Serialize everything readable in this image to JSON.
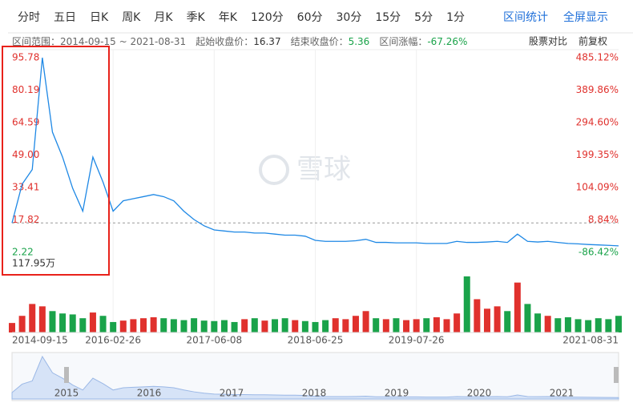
{
  "toolbar": {
    "tabs": [
      "分时",
      "五日",
      "日K",
      "周K",
      "月K",
      "季K",
      "年K",
      "120分",
      "60分",
      "30分",
      "15分",
      "5分",
      "1分"
    ],
    "actions": [
      "区间统计",
      "全屏显示"
    ]
  },
  "range_info": {
    "range_label": "区间范围：",
    "range_start": "2014-09-15",
    "range_sep": " ~ ",
    "range_end": "2021-08-31",
    "start_label": "起始收盘价：",
    "start_close": 16.37,
    "end_label": "结束收盘价：",
    "end_close": 5.36,
    "change_label": "区间涨幅：",
    "change": "-67.26%",
    "compare": "股票对比",
    "adjust": "前复权"
  },
  "watermark": "雪球",
  "chart_data": {
    "type": "line",
    "categories": [
      "2014-09-15",
      null,
      null,
      null,
      null,
      null,
      null,
      null,
      null,
      null,
      "2016-02-26",
      null,
      null,
      null,
      null,
      null,
      null,
      null,
      null,
      null,
      "2017-06-08",
      null,
      null,
      null,
      null,
      null,
      null,
      null,
      null,
      null,
      "2018-06-25",
      null,
      null,
      null,
      null,
      null,
      null,
      null,
      null,
      null,
      "2019-07-26",
      null,
      null,
      null,
      null,
      null,
      null,
      null,
      null,
      null,
      null,
      null,
      null,
      null,
      null,
      null,
      null,
      null,
      null,
      null,
      "2021-08-31"
    ],
    "series": [
      {
        "name": "收盘价",
        "color": "#1e88e5",
        "values": [
          16.37,
          35,
          42,
          95.78,
          60,
          48,
          33,
          22,
          48,
          36,
          22,
          27,
          28,
          29,
          30,
          29,
          27,
          22,
          18,
          15,
          13,
          12.5,
          12,
          12,
          11.5,
          11.5,
          11,
          10.5,
          10.5,
          10,
          8,
          7.5,
          7.5,
          7.5,
          7.8,
          8.5,
          7,
          7,
          6.8,
          6.8,
          6.8,
          6.5,
          6.5,
          6.5,
          7.5,
          7,
          7,
          7.2,
          7.5,
          7,
          11,
          7.5,
          7.2,
          7.5,
          7,
          6.5,
          6.3,
          6,
          5.8,
          5.6,
          5.36
        ]
      }
    ],
    "ylim": [
      2.22,
      95.78
    ],
    "yticks": [
      {
        "value": 95.78,
        "label": "95.78"
      },
      {
        "value": 80.19,
        "label": "80.19"
      },
      {
        "value": 64.59,
        "label": "64.59"
      },
      {
        "value": 49.0,
        "label": "49.00"
      },
      {
        "value": 33.41,
        "label": "33.41"
      },
      {
        "value": 17.82,
        "label": "17.82"
      },
      {
        "value": 2.22,
        "label": "2.22"
      }
    ],
    "y2lim": [
      -86.42,
      485.12
    ],
    "y2ticks": [
      {
        "value": 485.12,
        "label": "485.12%"
      },
      {
        "value": 389.86,
        "label": "389.86%"
      },
      {
        "value": 294.6,
        "label": "294.60%"
      },
      {
        "value": 199.35,
        "label": "199.35%"
      },
      {
        "value": 104.09,
        "label": "104.09%"
      },
      {
        "value": 8.84,
        "label": "8.84%"
      },
      {
        "value": -86.42,
        "label": "-86.42%"
      }
    ],
    "up_color": "#e0312d",
    "down_color": "#1aa34a",
    "volume": {
      "values": [
        20,
        35,
        60,
        55,
        45,
        40,
        38,
        30,
        42,
        35,
        22,
        25,
        28,
        30,
        32,
        30,
        28,
        26,
        30,
        25,
        24,
        26,
        22,
        28,
        30,
        25,
        28,
        30,
        26,
        24,
        22,
        26,
        30,
        28,
        35,
        45,
        30,
        28,
        30,
        26,
        28,
        30,
        32,
        28,
        40,
        117.95,
        70,
        50,
        55,
        45,
        105,
        60,
        40,
        35,
        30,
        32,
        28,
        26,
        30,
        28,
        35
      ],
      "ylim": [
        0,
        117.95
      ],
      "yticks": [
        {
          "value": 117.95,
          "label": "117.95万"
        }
      ]
    },
    "navigator": {
      "labels": [
        "2015",
        "2016",
        "2017",
        "2018",
        "2019",
        "2020",
        "2021"
      ]
    }
  }
}
